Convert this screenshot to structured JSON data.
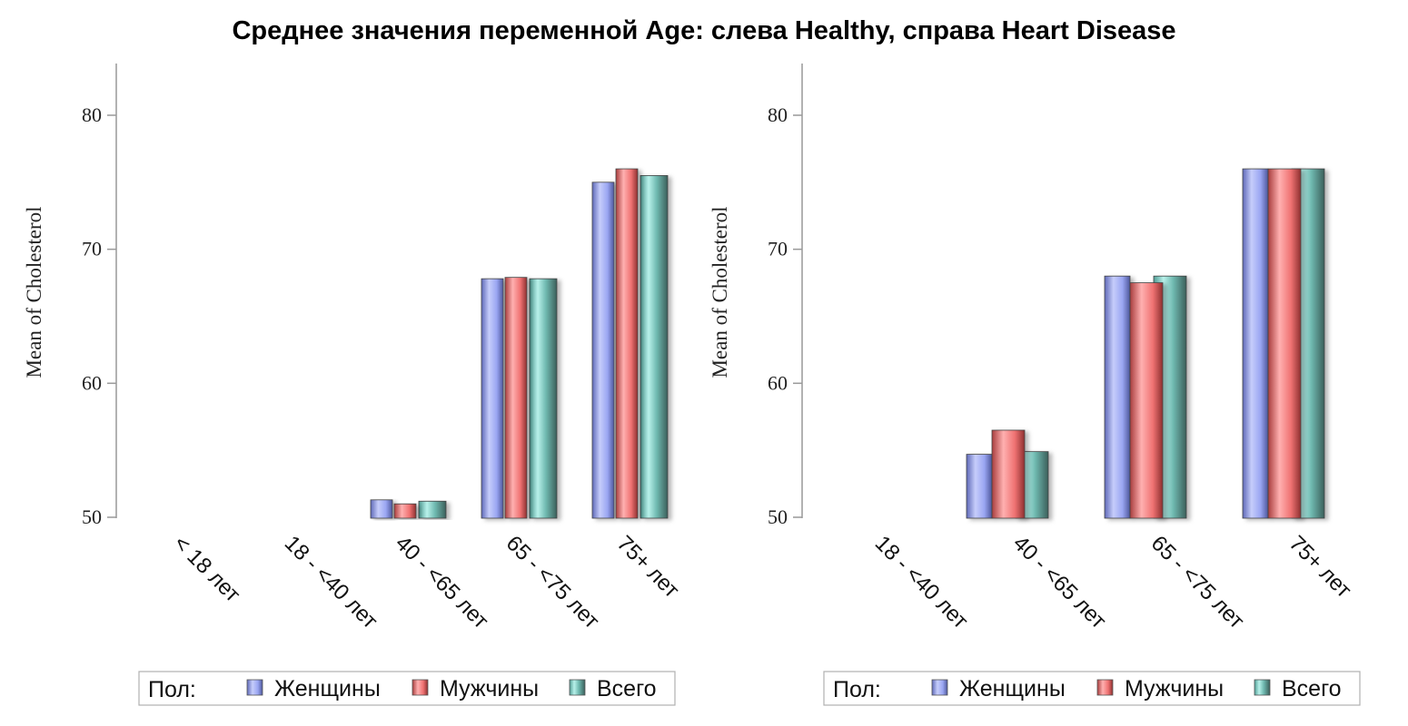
{
  "title": "Среднее значения переменной Age: слева Healthy, справа Heart Disease",
  "colors": {
    "Женщины": "#9aa6f2",
    "Мужчины": "#ef7272",
    "Всего": "#7fd6cc",
    "axis": "#999999"
  },
  "chart_data": [
    {
      "type": "bar",
      "title": "",
      "xlabel": "",
      "ylabel": "Mean of Cholesterol",
      "ylim": [
        50,
        84
      ],
      "yticks": [
        50,
        60,
        70,
        80
      ],
      "categories": [
        "< 18 лет",
        "18 - <40 лет",
        "40 - <65 лет",
        "65 - <75 лет",
        "75+ лет"
      ],
      "series": [
        {
          "name": "Женщины",
          "values": [
            null,
            null,
            51.3,
            67.8,
            75.0
          ]
        },
        {
          "name": "Мужчины",
          "values": [
            null,
            null,
            51.0,
            67.9,
            76.0
          ]
        },
        {
          "name": "Всего",
          "values": [
            null,
            null,
            51.2,
            67.8,
            75.5
          ]
        }
      ],
      "legend": {
        "title": "Пол:",
        "position": "bottom",
        "items": [
          "Женщины",
          "Мужчины",
          "Всего"
        ]
      }
    },
    {
      "type": "bar",
      "title": "",
      "xlabel": "",
      "ylabel": "Mean of Cholesterol",
      "ylim": [
        50,
        84
      ],
      "yticks": [
        50,
        60,
        70,
        80
      ],
      "categories": [
        "18 - <40 лет",
        "40 - <65 лет",
        "65 - <75 лет",
        "75+ лет"
      ],
      "series": [
        {
          "name": "Женщины",
          "values": [
            null,
            54.7,
            68.0,
            76.0
          ]
        },
        {
          "name": "Мужчины",
          "values": [
            null,
            56.5,
            67.5,
            76.0
          ]
        },
        {
          "name": "Всего",
          "values": [
            null,
            54.9,
            68.0,
            76.0
          ]
        }
      ],
      "legend": {
        "title": "Пол:",
        "position": "bottom",
        "items": [
          "Женщины",
          "Мужчины",
          "Всего"
        ]
      }
    }
  ]
}
